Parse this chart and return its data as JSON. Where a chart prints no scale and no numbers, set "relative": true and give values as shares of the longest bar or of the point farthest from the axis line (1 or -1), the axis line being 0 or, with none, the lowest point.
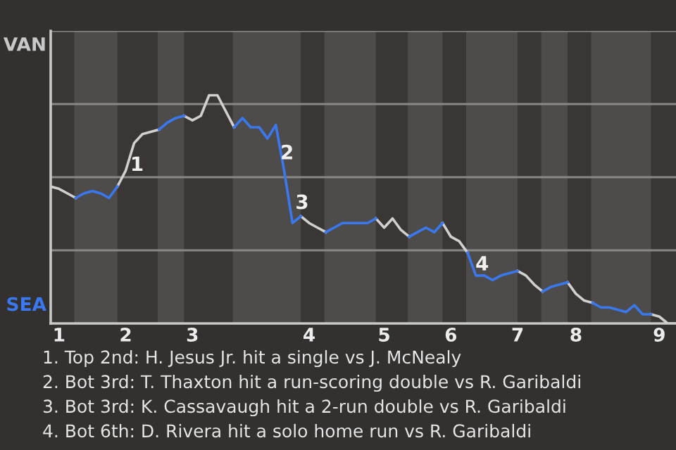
{
  "chart_data": {
    "type": "line",
    "relative": true,
    "categories": [
      null,
      "1",
      null,
      null,
      null,
      null,
      null,
      null,
      null,
      "2",
      null,
      null,
      null,
      null,
      null,
      null,
      null,
      "3",
      null,
      null,
      null,
      null,
      null,
      null,
      null,
      null,
      null,
      null,
      null,
      null,
      null,
      "4",
      null,
      null,
      null,
      null,
      null,
      null,
      null,
      null,
      "5",
      null,
      null,
      null,
      null,
      null,
      null,
      null,
      "6",
      null,
      null,
      null,
      null,
      null,
      null,
      null,
      "7",
      null,
      null,
      null,
      null,
      null,
      null,
      "8",
      null,
      null,
      null,
      null,
      null,
      null,
      null,
      null,
      null,
      "9",
      null,
      null
    ],
    "grid": "y",
    "legend": false,
    "marker": "none",
    "line_style": "solid",
    "series": [
      {
        "color": "#d0d0d0",
        "values": [
          0.6,
          0.59,
          0.57,
          0.55,
          null,
          null,
          null,
          null,
          0.6,
          0.67,
          0.79,
          0.83,
          0.84,
          0.85,
          null,
          null,
          0.91,
          0.89,
          0.91,
          1.0,
          1.0,
          0.93,
          0.86,
          null,
          null,
          null,
          null,
          null,
          null,
          null,
          0.47,
          0.44,
          0.42,
          0.4,
          null,
          null,
          null,
          null,
          null,
          0.46,
          0.42,
          0.46,
          0.41,
          0.38,
          null,
          null,
          null,
          0.44,
          0.38,
          0.36,
          0.31,
          null,
          null,
          null,
          null,
          null,
          0.23,
          0.21,
          0.17,
          0.14,
          null,
          null,
          0.18,
          0.13,
          0.1,
          0.09,
          null,
          null,
          null,
          null,
          null,
          null,
          0.04,
          0.03,
          0,
          0
        ]
      },
      {
        "color": "#3a78f0",
        "values": [
          null,
          null,
          null,
          0.55,
          0.57,
          0.58,
          0.57,
          0.55,
          0.6,
          null,
          null,
          null,
          null,
          0.85,
          0.88,
          0.9,
          0.91,
          null,
          null,
          null,
          null,
          null,
          0.86,
          0.9,
          0.86,
          0.86,
          0.81,
          0.87,
          0.67,
          0.44,
          0.47,
          null,
          null,
          0.4,
          0.42,
          0.44,
          0.44,
          0.44,
          0.44,
          0.46,
          null,
          null,
          null,
          0.38,
          0.4,
          0.42,
          0.4,
          0.44,
          null,
          null,
          0.31,
          0.21,
          0.21,
          0.19,
          0.21,
          0.22,
          0.23,
          null,
          null,
          0.14,
          0.16,
          0.17,
          0.18,
          null,
          null,
          0.09,
          0.07,
          0.07,
          0.06,
          0.05,
          0.08,
          0.04,
          0.04,
          null,
          null,
          null
        ]
      }
    ],
    "annotations": [
      "VAN",
      "SEA",
      "1",
      "2",
      "3",
      "4",
      "1. Top 2nd: H. Jesus Jr. hit a single vs J. McNealy",
      "2. Bot 3rd: T. Thaxton hit a run-scoring double vs R. Garibaldi",
      "3. Bot 3rd: K. Cassavaugh hit a 2-run double vs R. Garibaldi",
      "4. Bot 6th: D. Rivera hit a solo home run vs R. Garibaldi"
    ]
  }
}
